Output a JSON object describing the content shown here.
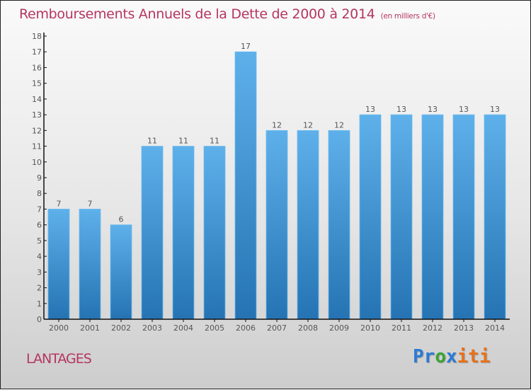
{
  "header": {
    "title": "Remboursements Annuels de la Dette de 2000 à 2014",
    "subtitle": "(en milliers d'€)"
  },
  "footer": {
    "commune": "LANTAGES",
    "logo_letters": [
      {
        "char": "P",
        "color": "#2a7bd4"
      },
      {
        "char": "r",
        "color": "#2a7bd4"
      },
      {
        "char": "o",
        "color": "#3aa335"
      },
      {
        "char": "x",
        "color": "#2a7bd4"
      },
      {
        "char": "i",
        "color": "#e8711a"
      },
      {
        "char": "t",
        "color": "#e8711a"
      },
      {
        "char": "i",
        "color": "#e8711a"
      }
    ]
  },
  "colors": {
    "bar_top": "#5eb0ea",
    "bar_bottom": "#2573b3",
    "title": "#b5365f"
  },
  "chart_data": {
    "type": "bar",
    "title": "Remboursements Annuels de la Dette de 2000 à 2014",
    "subtitle": "(en milliers d'€)",
    "xlabel": "",
    "ylabel": "",
    "categories": [
      "2000",
      "2001",
      "2002",
      "2003",
      "2004",
      "2005",
      "2006",
      "2007",
      "2008",
      "2009",
      "2010",
      "2011",
      "2012",
      "2013",
      "2014"
    ],
    "values": [
      7,
      7,
      6,
      11,
      11,
      11,
      17,
      12,
      12,
      12,
      13,
      13,
      13,
      13,
      13
    ],
    "ylim": [
      0,
      18
    ],
    "yticks": [
      0,
      1,
      2,
      3,
      4,
      5,
      6,
      7,
      8,
      9,
      10,
      11,
      12,
      13,
      14,
      15,
      16,
      17,
      18
    ],
    "grid": false,
    "data_labels": true,
    "legend": "none"
  }
}
